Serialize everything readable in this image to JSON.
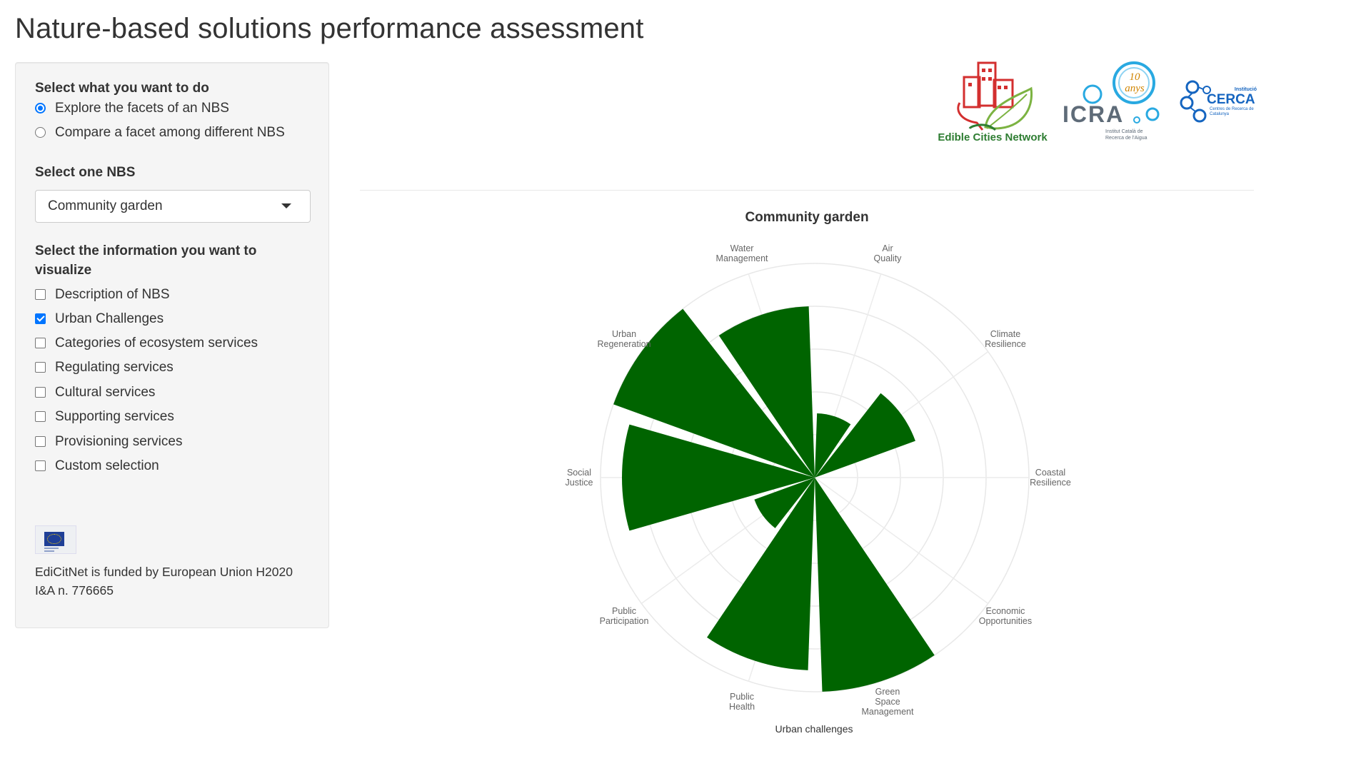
{
  "page": {
    "title": "Nature-based solutions performance assessment"
  },
  "sidebar": {
    "mode_label": "Select what you want to do",
    "mode_options": [
      {
        "label": "Explore the facets of an NBS",
        "selected": true
      },
      {
        "label": "Compare a facet among different NBS",
        "selected": false
      }
    ],
    "nbs_label": "Select one NBS",
    "nbs_selected": "Community garden",
    "info_label": "Select the information you want to visualize",
    "info_options": [
      {
        "label": "Description of NBS",
        "checked": false
      },
      {
        "label": "Urban Challenges",
        "checked": true
      },
      {
        "label": "Categories of ecosystem services",
        "checked": false
      },
      {
        "label": "Regulating services",
        "checked": false
      },
      {
        "label": "Cultural services",
        "checked": false
      },
      {
        "label": "Supporting services",
        "checked": false
      },
      {
        "label": "Provisioning services",
        "checked": false
      },
      {
        "label": "Custom selection",
        "checked": false
      }
    ],
    "funding_text": "EdiCitNet is funded by European Union H2020 I&A n. 776665"
  },
  "logos": {
    "edible": "Edible Cities Network",
    "icra": "ICRA",
    "icra_years": "10 anys",
    "icra_sub": "Institut Català de Recerca de l'Aigua",
    "cerca": "CERCA",
    "cerca_top": "Institució",
    "cerca_sub": "Centres de Recerca de Catalunya"
  },
  "colors": {
    "bar_fill": "#006400",
    "accent": "#0075ff"
  },
  "chart_data": {
    "type": "bar",
    "polar": true,
    "title": "Community garden",
    "xlabel": "Urban challenges",
    "ylim": [
      0,
      5
    ],
    "grid": true,
    "categories": [
      "Air Quality",
      "Climate Resilience",
      "Coastal Resilience",
      "Economic Opportunities",
      "Green Space Management",
      "Public Health",
      "Public Participation",
      "Social Justice",
      "Urban Regeneration",
      "Water Management"
    ],
    "values": [
      1.5,
      2.5,
      0,
      0,
      5,
      4.5,
      1.5,
      4.5,
      5,
      4
    ]
  }
}
